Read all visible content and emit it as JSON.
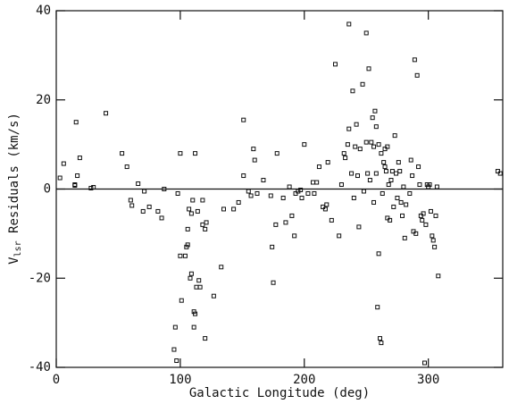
{
  "chart_data": {
    "type": "scatter",
    "x_label": "Galactic Longitude (deg)",
    "y_label": "V",
    "y_label_sub": "lsr",
    "y_label_rest": " Residuals (km/s)",
    "xlim": [
      0,
      360
    ],
    "xticks": [
      0,
      100,
      200,
      300
    ],
    "ylim": [
      -40,
      40
    ],
    "yticks": [
      -40,
      -20,
      0,
      20,
      40
    ],
    "reference_line": 0,
    "color": "#111111",
    "x": [
      3,
      6,
      15,
      15,
      16,
      17,
      19,
      28,
      30,
      40,
      53,
      57,
      60,
      61,
      66,
      70,
      71,
      75,
      82,
      85,
      87,
      95,
      96,
      97,
      98,
      100,
      100,
      101,
      104,
      105,
      106,
      106,
      107,
      108,
      109,
      109,
      110,
      111,
      111,
      112,
      112,
      113,
      114,
      115,
      116,
      118,
      118,
      120,
      120,
      121,
      127,
      133,
      135,
      143,
      147,
      151,
      151,
      155,
      157,
      159,
      160,
      162,
      167,
      173,
      174,
      175,
      177,
      178,
      183,
      185,
      188,
      190,
      192,
      193,
      195,
      197,
      198,
      200,
      203,
      207,
      208,
      210,
      212,
      215,
      217,
      218,
      219,
      222,
      225,
      228,
      230,
      232,
      233,
      235,
      236,
      236,
      238,
      239,
      240,
      241,
      242,
      243,
      244,
      245,
      247,
      248,
      250,
      250,
      251,
      252,
      253,
      254,
      255,
      256,
      256,
      257,
      258,
      258,
      259,
      260,
      260,
      261,
      262,
      262,
      263,
      264,
      265,
      265,
      266,
      267,
      267,
      268,
      269,
      270,
      271,
      272,
      273,
      274,
      275,
      276,
      277,
      278,
      279,
      280,
      281,
      282,
      285,
      286,
      287,
      288,
      289,
      290,
      291,
      292,
      293,
      294,
      295,
      296,
      297,
      298,
      299,
      300,
      301,
      302,
      303,
      304,
      305,
      306,
      307,
      308,
      356,
      358
    ],
    "y": [
      2.5,
      5.7,
      1,
      0.8,
      15,
      3,
      7,
      0.2,
      0.4,
      17,
      8,
      5,
      -2.5,
      -3.7,
      1.2,
      -5,
      -0.5,
      -4,
      -5,
      -6.5,
      0,
      -36,
      -31,
      -38.5,
      -1,
      -15,
      8,
      -25,
      -15,
      -13,
      -12.5,
      -9,
      -4.5,
      -20,
      -19,
      -5.5,
      -2.5,
      -31,
      -27.5,
      -28,
      8,
      -22,
      -5,
      -20.5,
      -22,
      -8,
      -2.5,
      -33.5,
      -9,
      -7.5,
      -24,
      -17.5,
      -4.5,
      -4.5,
      -3,
      15.5,
      3,
      -0.5,
      -1.5,
      9,
      6.5,
      -1,
      2,
      -1.5,
      -13,
      -21,
      -8,
      8,
      -2,
      -7.5,
      0.5,
      -6,
      -10.5,
      -1,
      -0.5,
      -0.2,
      -2,
      10,
      -1,
      1.5,
      -1,
      1.5,
      5,
      -4,
      -4.5,
      -3.5,
      6,
      -7,
      28,
      -10.5,
      1,
      8,
      7,
      10,
      13.5,
      37,
      3.5,
      22,
      -2,
      9.5,
      14.5,
      3,
      -8.5,
      9,
      23.5,
      -0.5,
      35,
      10.5,
      3.5,
      27,
      2,
      10.5,
      16,
      9.5,
      -3,
      17.5,
      14,
      3.5,
      -26.5,
      -14.5,
      10,
      -33.5,
      -34.5,
      8,
      -1,
      6,
      9,
      5,
      4,
      9.5,
      -6.5,
      1,
      -7,
      2,
      4,
      -4,
      12,
      3.5,
      -2,
      6,
      4,
      -3,
      -6,
      0.5,
      -11,
      -3.5,
      -1,
      6.5,
      3,
      -9.5,
      29,
      -10,
      25.5,
      5,
      1,
      -6,
      -7,
      -5.5,
      -39,
      -8,
      1,
      0.5,
      1,
      -5,
      -10.5,
      -11.5,
      -13,
      -6,
      0.5,
      -19.5,
      4,
      3.5
    ]
  }
}
